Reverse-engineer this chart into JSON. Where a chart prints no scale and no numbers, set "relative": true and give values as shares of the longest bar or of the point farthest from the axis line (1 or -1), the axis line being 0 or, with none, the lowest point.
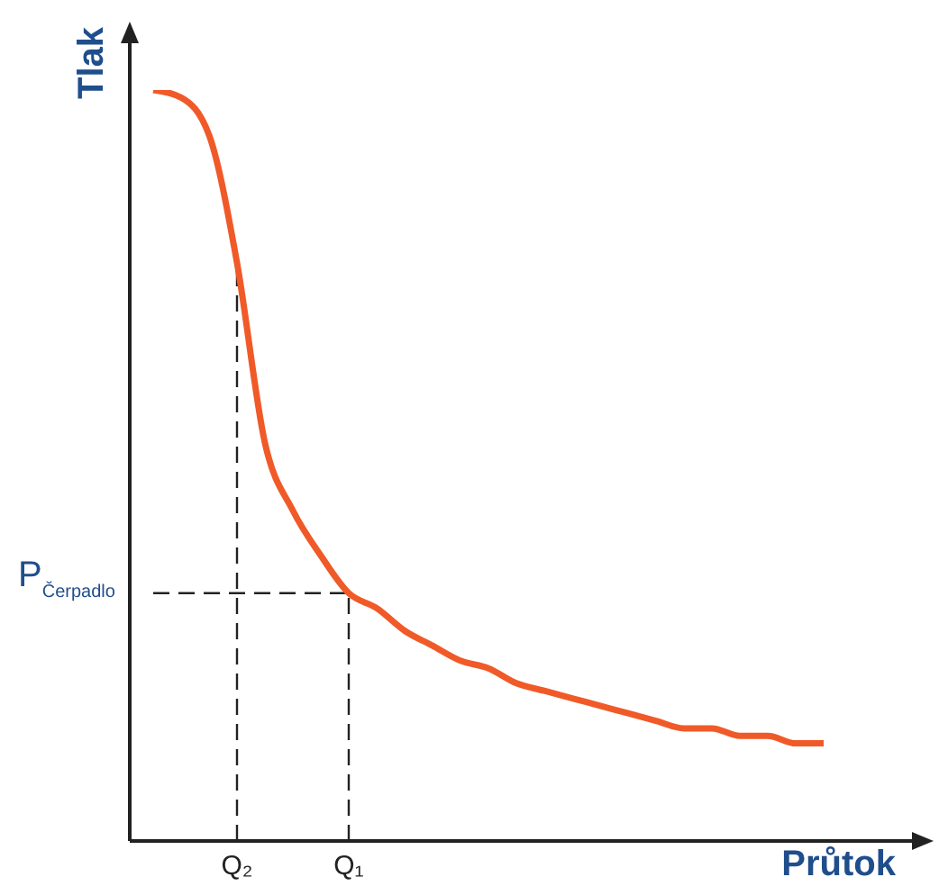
{
  "chart_data": {
    "type": "line",
    "relative": true,
    "xlabel": "Průtok",
    "ylabel": "Tlak",
    "categories": [
      null,
      null,
      null,
      "Q₂",
      null,
      null,
      null,
      "Q₁",
      null,
      null,
      null,
      null,
      null,
      null,
      null,
      null,
      null,
      null,
      null,
      null,
      null,
      null,
      null,
      null,
      null
    ],
    "series": [
      {
        "color": "#f05a28",
        "values": [
          1.0,
          0.99,
          0.94,
          0.77,
          0.53,
          0.44,
          0.38,
          0.33,
          0.31,
          0.28,
          0.26,
          0.24,
          0.23,
          0.21,
          0.2,
          0.19,
          0.18,
          0.17,
          0.16,
          0.15,
          0.15,
          0.14,
          0.14,
          0.13,
          0.13
        ]
      }
    ],
    "ref_lines": [
      {
        "axis": "x",
        "value": "Q₂",
        "color": "#222222",
        "line_style": "dashed"
      },
      {
        "axis": "x",
        "value": "Q₁",
        "color": "#222222",
        "line_style": "dashed"
      },
      {
        "axis": "y",
        "value": 0.33,
        "label": "P$_{Čerpadlo}$",
        "color": "#222222",
        "line_style": "dashed"
      }
    ],
    "grid": false,
    "legend": false,
    "marker": "none",
    "line_style": "solid"
  }
}
